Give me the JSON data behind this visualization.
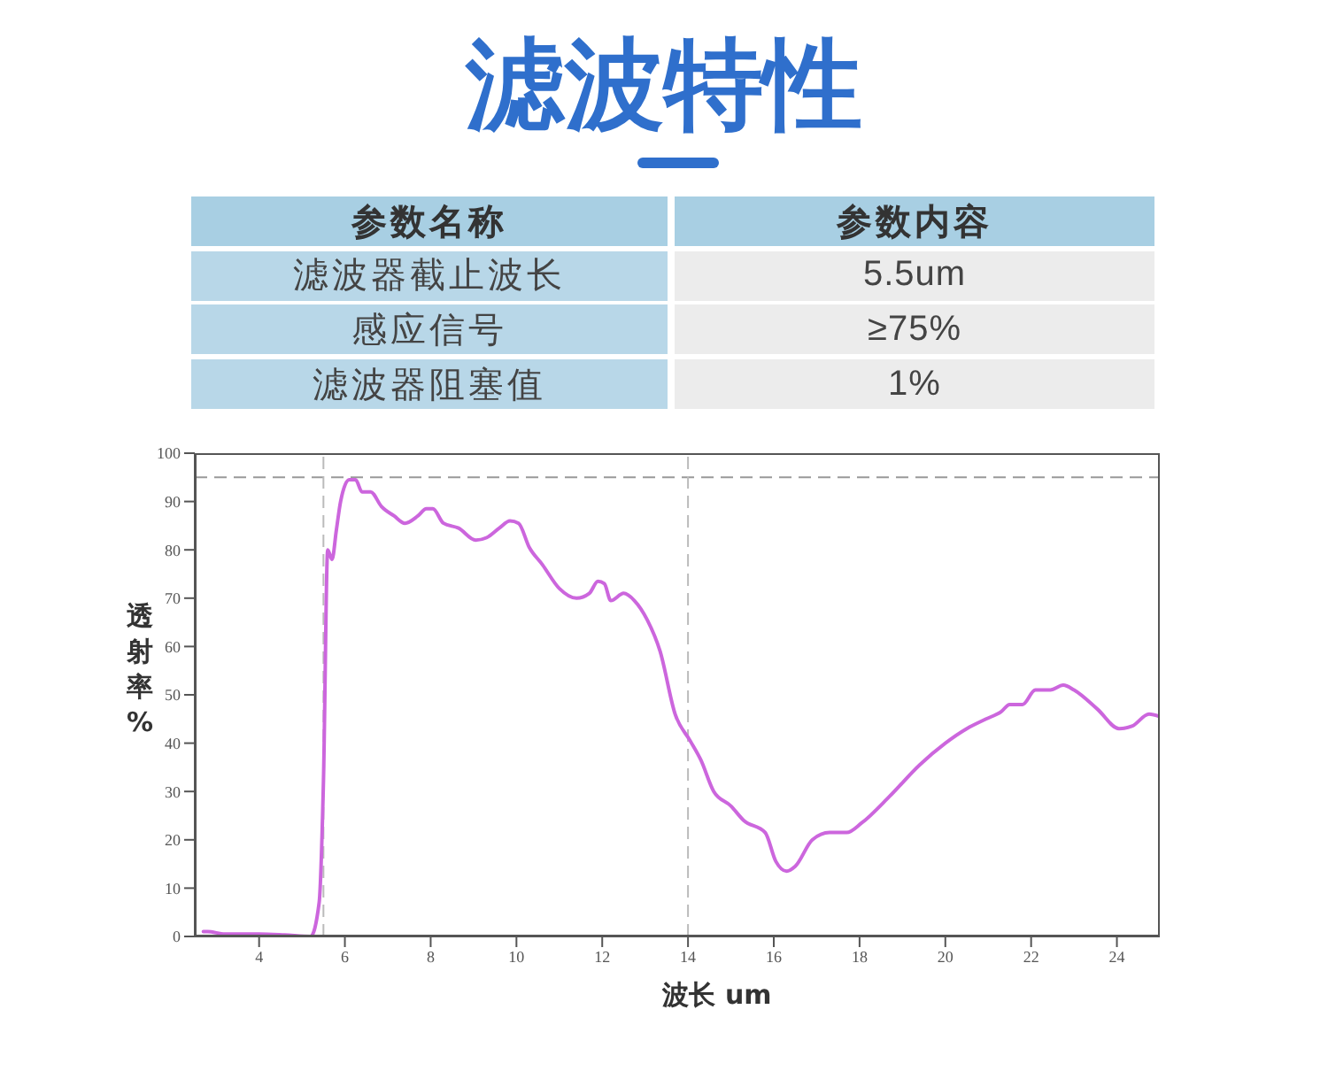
{
  "chart_data": [
    {
      "type": "other",
      "title": "滤波特性",
      "annotations": [
        "参数名称",
        "参数内容",
        "滤波器截止波长",
        "5.5um",
        "感应信号",
        "≥75%",
        "滤波器阻塞值",
        "1%"
      ]
    },
    {
      "type": "line",
      "xlabel": "波长 um",
      "ylabel": "透射率%",
      "color": "#cc66dd",
      "marker": "none",
      "x": [
        2.7,
        2.8,
        3.2,
        4.0,
        4.6,
        5.2,
        5.4,
        5.5,
        5.6,
        5.7,
        5.8,
        5.9,
        6.1,
        6.25,
        6.4,
        6.6,
        6.85,
        7.15,
        7.4,
        7.7,
        7.9,
        8.05,
        8.3,
        8.65,
        9.05,
        9.3,
        9.6,
        9.85,
        10.05,
        10.3,
        10.6,
        11.0,
        11.4,
        11.7,
        11.9,
        12.05,
        12.2,
        12.5,
        12.75,
        13.05,
        13.35,
        13.7,
        14.05,
        14.3,
        14.6,
        15.0,
        15.3,
        15.8,
        16.05,
        16.3,
        16.5,
        16.9,
        17.3,
        17.7,
        18.05,
        18.7,
        19.4,
        20.0,
        20.5,
        20.95,
        21.3,
        21.5,
        21.8,
        22.1,
        22.45,
        22.75,
        23.0,
        23.55,
        24.05,
        24.35,
        24.75,
        25.0
      ],
      "values": [
        1,
        1,
        0.5,
        0.5,
        0.3,
        0,
        7,
        32,
        80,
        78,
        84,
        90,
        94.5,
        94.5,
        92,
        92,
        89,
        87,
        85.5,
        87,
        88.5,
        88.5,
        85.5,
        84.5,
        82,
        82.5,
        84.5,
        86,
        85.5,
        80.5,
        77,
        72,
        70,
        71,
        73.5,
        73,
        69.5,
        71,
        69.5,
        65.5,
        59,
        46,
        40.5,
        36.5,
        30,
        27,
        24,
        21.5,
        15.5,
        13.5,
        14.5,
        20,
        21.5,
        21.5,
        23.5,
        29,
        35.5,
        40,
        43,
        45,
        46.5,
        48,
        48,
        51,
        51,
        52,
        51,
        47,
        43,
        43.5,
        46,
        45.5
      ],
      "xlim": [
        2.5,
        25
      ],
      "xticks": [
        4,
        6,
        8,
        10,
        12,
        14,
        16,
        18,
        20,
        22,
        24
      ],
      "ylim": [
        0,
        100
      ],
      "yticks": [
        0,
        10,
        20,
        30,
        40,
        50,
        60,
        70,
        80,
        90,
        100
      ],
      "ref_lines": [
        {
          "axis": "y",
          "value": 95,
          "color": "#999999",
          "line_style": "dashed"
        },
        {
          "axis": "x",
          "value": 5.5,
          "color": "#bbbbbb",
          "line_style": "dashed"
        },
        {
          "axis": "x",
          "value": 14,
          "color": "#bbbbbb",
          "line_style": "dashed"
        }
      ]
    }
  ]
}
